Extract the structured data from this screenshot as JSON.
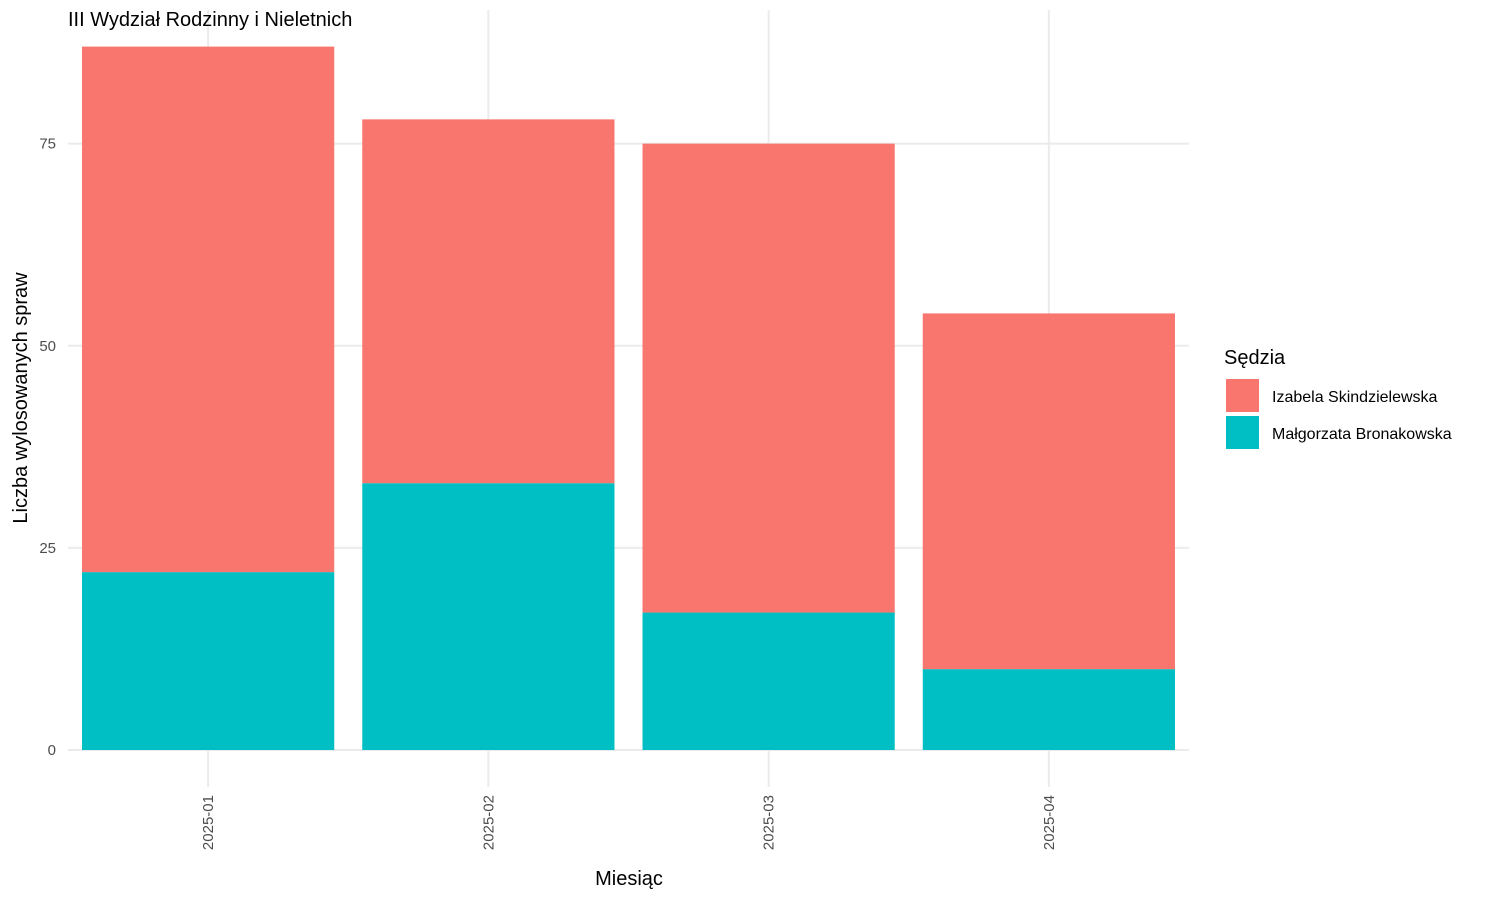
{
  "chart_data": {
    "type": "bar",
    "stacked": true,
    "title": "III Wydział Rodzinny i Nieletnich",
    "xlabel": "Miesiąc",
    "ylabel": "Liczba wylosowanych spraw",
    "categories": [
      "2025-01",
      "2025-02",
      "2025-03",
      "2025-04"
    ],
    "series": [
      {
        "name": "Małgorzata Bronakowska",
        "color": "#00BFC4",
        "values": [
          22,
          33,
          17,
          10
        ]
      },
      {
        "name": "Izabela Skindzielewska",
        "color": "#F8766D",
        "values": [
          65,
          45,
          58,
          44
        ]
      }
    ],
    "ylim": [
      0,
      87
    ],
    "yticks": [
      0,
      25,
      50,
      75
    ],
    "grid": true,
    "legend": {
      "title": "Sędzia",
      "position": "right",
      "entries": [
        "Izabela Skindzielewska",
        "Małgorzata Bronakowska"
      ]
    }
  }
}
